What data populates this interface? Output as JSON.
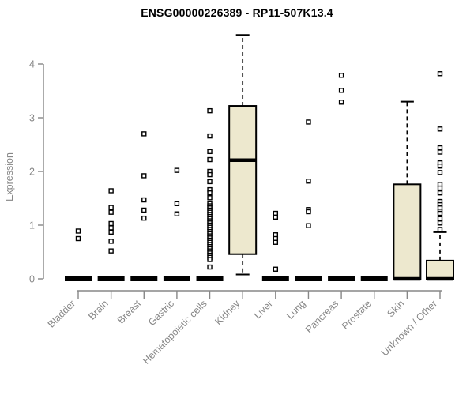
{
  "chart_data": {
    "type": "boxplot",
    "title": "ENSG00000226389 - RP11-507K13.4",
    "ylabel": "Expression",
    "xlabel": "",
    "ylim": [
      0,
      4
    ],
    "yticks": [
      0,
      1,
      2,
      3,
      4
    ],
    "grid": false,
    "legend": "none",
    "categories": [
      "Bladder",
      "Brain",
      "Breast",
      "Gastric",
      "Hematopoietic cells",
      "Kidney",
      "Liver",
      "Lung",
      "Pancreas",
      "Prostate",
      "Skin",
      "Unknown / Other"
    ],
    "boxes": [
      {
        "category": "Bladder",
        "q1": 0,
        "median": 0,
        "q3": 0,
        "whisker_low": 0,
        "whisker_high": 0,
        "outliers": [
          0.89,
          0.75
        ]
      },
      {
        "category": "Brain",
        "q1": 0,
        "median": 0,
        "q3": 0,
        "whisker_low": 0,
        "whisker_high": 0,
        "outliers": [
          1.64,
          1.33,
          1.24,
          1.03,
          0.95,
          0.87,
          0.7,
          0.52
        ]
      },
      {
        "category": "Breast",
        "q1": 0,
        "median": 0,
        "q3": 0,
        "whisker_low": 0,
        "whisker_high": 0,
        "outliers": [
          2.7,
          1.92,
          1.47,
          1.28,
          1.13
        ]
      },
      {
        "category": "Gastric",
        "q1": 0,
        "median": 0,
        "q3": 0,
        "whisker_low": 0,
        "whisker_high": 0,
        "outliers": [
          2.02,
          1.4,
          1.21
        ]
      },
      {
        "category": "Hematopoietic cells",
        "q1": 0,
        "median": 0,
        "q3": 0,
        "whisker_low": 0,
        "whisker_high": 0,
        "outliers": [
          3.13,
          2.66,
          2.37,
          2.22,
          2.0,
          1.94,
          1.81,
          1.66,
          1.6,
          1.51,
          1.4,
          1.36,
          1.32,
          1.28,
          1.24,
          1.2,
          1.16,
          1.12,
          1.08,
          1.04,
          1.0,
          0.96,
          0.92,
          0.88,
          0.84,
          0.8,
          0.76,
          0.72,
          0.68,
          0.64,
          0.6,
          0.56,
          0.52,
          0.48,
          0.44,
          0.4,
          0.36,
          0.22
        ]
      },
      {
        "category": "Kidney",
        "q1": 0.46,
        "median": 2.21,
        "q3": 3.22,
        "whisker_low": 0.08,
        "whisker_high": 4.54,
        "outliers": []
      },
      {
        "category": "Liver",
        "q1": 0,
        "median": 0,
        "q3": 0,
        "whisker_low": 0,
        "whisker_high": 0,
        "outliers": [
          1.22,
          1.15,
          0.82,
          0.75,
          0.68,
          0.18
        ]
      },
      {
        "category": "Lung",
        "q1": 0,
        "median": 0,
        "q3": 0,
        "whisker_low": 0,
        "whisker_high": 0,
        "outliers": [
          2.92,
          1.82,
          1.29,
          1.25,
          0.99
        ]
      },
      {
        "category": "Pancreas",
        "q1": 0,
        "median": 0,
        "q3": 0,
        "whisker_low": 0,
        "whisker_high": 0,
        "outliers": [
          3.79,
          3.51,
          3.29
        ]
      },
      {
        "category": "Prostate",
        "q1": 0,
        "median": 0,
        "q3": 0,
        "whisker_low": 0,
        "whisker_high": 0,
        "outliers": []
      },
      {
        "category": "Skin",
        "q1": 0,
        "median": 0,
        "q3": 1.76,
        "whisker_low": 0,
        "whisker_high": 3.3,
        "outliers": []
      },
      {
        "category": "Unknown / Other",
        "q1": 0,
        "median": 0,
        "q3": 0.34,
        "whisker_low": 0,
        "whisker_high": 0.87,
        "outliers": [
          3.82,
          2.79,
          2.44,
          2.36,
          2.16,
          2.1,
          1.98,
          1.76,
          1.69,
          1.6,
          1.44,
          1.38,
          1.32,
          1.26,
          1.22,
          1.12,
          1.04,
          0.92
        ]
      }
    ],
    "colors": {
      "box_fill": "#EDE8CE",
      "box_stroke": "#000000",
      "median": "#000000",
      "outlier_stroke": "#000000",
      "outlier_fill": "#ffffff",
      "axis": "#878787",
      "tick_label": "#878787",
      "title": "#000000",
      "background": "#ffffff"
    }
  }
}
